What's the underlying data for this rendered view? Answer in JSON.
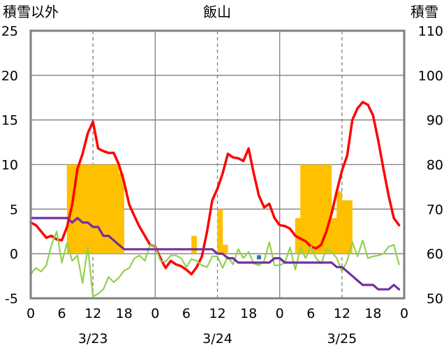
{
  "chart_data": {
    "type": "line",
    "title": "飯山",
    "ylabel_left": "積雪以外",
    "ylabel_right": "積雪",
    "ylim_left": [
      -5,
      25
    ],
    "ylim_right": [
      50,
      110
    ],
    "yticks_left": [
      "-5",
      "0",
      "5",
      "10",
      "15",
      "20",
      "25"
    ],
    "yticks_right": [
      "50",
      "60",
      "70",
      "80",
      "90",
      "100",
      "110"
    ],
    "x_range_hours": [
      0,
      72
    ],
    "xticks": [
      "0",
      "6",
      "12",
      "18",
      "0",
      "6",
      "12",
      "18",
      "0",
      "6",
      "12",
      "18",
      "0"
    ],
    "date_labels": [
      "3/23",
      "3/24",
      "3/25"
    ],
    "grid": {
      "horizontal": "solid",
      "day_separators": "solid",
      "noon_lines": "dashed"
    },
    "colors": {
      "temperature": "#ff0000",
      "snow_depth": "#7030a0",
      "precipitation": "#ffc000",
      "wind": "#92d050",
      "marker": "#2e75b6",
      "grid": "#7f7f7f"
    },
    "series": [
      {
        "key": "precipitation",
        "axis": "left",
        "type": "bar",
        "x": [
          7,
          8,
          9,
          10,
          11,
          12,
          13,
          14,
          15,
          16,
          17,
          31,
          36,
          37,
          51,
          52,
          53,
          54,
          55,
          56,
          57,
          58,
          59,
          60,
          61,
          62
        ],
        "values": [
          10,
          10,
          10,
          10,
          10,
          10,
          10,
          10,
          10,
          10,
          9,
          2,
          5,
          1,
          4,
          10,
          10,
          10,
          10,
          10,
          10,
          4,
          7,
          6,
          6,
          0
        ]
      },
      {
        "key": "temperature",
        "axis": "left",
        "type": "line",
        "x": [
          0,
          1,
          2,
          3,
          4,
          5,
          6,
          7,
          8,
          9,
          10,
          11,
          12,
          13,
          14,
          15,
          16,
          17,
          18,
          19,
          20,
          21,
          22,
          23,
          24,
          25,
          26,
          27,
          28,
          29,
          30,
          31,
          32,
          33,
          34,
          35,
          36,
          37,
          38,
          39,
          40,
          41,
          42,
          43,
          44,
          45,
          46,
          47,
          48,
          49,
          50,
          51,
          52,
          53,
          54,
          55,
          56,
          57,
          58,
          59,
          60,
          61,
          62,
          63,
          64,
          65,
          66,
          67,
          68,
          69,
          70,
          71
        ],
        "values": [
          3.5,
          3.2,
          2.5,
          1.8,
          2.0,
          1.6,
          1.5,
          3.0,
          5.5,
          9.5,
          11.2,
          13.5,
          14.8,
          11.8,
          11.5,
          11.3,
          11.3,
          10.0,
          8.0,
          5.5,
          4.2,
          3.0,
          2.0,
          1.0,
          0.8,
          -0.5,
          -1.6,
          -0.8,
          -1.2,
          -1.4,
          -1.8,
          -2.3,
          -1.5,
          -0.3,
          2.5,
          6.0,
          7.3,
          9.0,
          11.2,
          10.8,
          10.7,
          10.4,
          11.8,
          9.0,
          6.5,
          5.2,
          5.6,
          4.0,
          3.2,
          3.1,
          2.8,
          2.0,
          1.7,
          1.4,
          0.8,
          0.6,
          1.0,
          2.5,
          4.5,
          7.0,
          9.3,
          11.0,
          15.0,
          16.3,
          17.0,
          16.7,
          15.5,
          12.7,
          9.5,
          6.5,
          4.0,
          3.2
        ]
      },
      {
        "key": "wind",
        "axis": "left",
        "type": "line",
        "x": [
          0,
          1,
          2,
          3,
          4,
          5,
          6,
          7,
          8,
          9,
          10,
          11,
          12,
          13,
          14,
          15,
          16,
          17,
          18,
          19,
          20,
          21,
          22,
          23,
          24,
          25,
          26,
          27,
          28,
          29,
          30,
          31,
          32,
          33,
          34,
          35,
          36,
          37,
          38,
          39,
          40,
          41,
          42,
          43,
          44,
          45,
          46,
          47,
          48,
          49,
          50,
          51,
          52,
          53,
          54,
          55,
          56,
          57,
          58,
          59,
          60,
          61,
          62,
          63,
          64,
          65,
          66,
          67,
          68,
          69,
          70,
          71
        ],
        "values": [
          -2.3,
          -1.6,
          -2.0,
          -1.3,
          1.0,
          2.5,
          -1.0,
          1.2,
          -0.8,
          -0.2,
          -3.3,
          0.8,
          -4.8,
          -4.5,
          -4.0,
          -2.6,
          -3.2,
          -2.7,
          -1.9,
          -1.6,
          -0.5,
          -0.2,
          -0.8,
          1.0,
          0.8,
          -0.8,
          -0.9,
          -0.2,
          -0.2,
          -0.5,
          -1.5,
          -0.6,
          -0.8,
          -1.3,
          -1.5,
          -0.3,
          -0.3,
          -1.6,
          -0.3,
          -1.2,
          0.5,
          -0.5,
          0.2,
          -1.1,
          -1.3,
          -0.8,
          1.3,
          -1.3,
          -1.3,
          -1.0,
          0.7,
          -1.8,
          0.7,
          -0.5,
          0.8,
          -0.5,
          -1.1,
          0.5,
          0.2,
          -0.5,
          -2.0,
          -0.8,
          1.3,
          -0.3,
          1.5,
          -0.5,
          -0.3,
          -0.2,
          0.0,
          0.8,
          1.0,
          -1.2
        ]
      },
      {
        "key": "snow_depth",
        "axis": "right",
        "type": "line",
        "x": [
          0,
          1,
          2,
          3,
          4,
          5,
          6,
          7,
          8,
          9,
          10,
          11,
          12,
          13,
          14,
          15,
          16,
          17,
          18,
          19,
          20,
          21,
          22,
          23,
          24,
          25,
          26,
          27,
          28,
          29,
          30,
          31,
          32,
          33,
          34,
          35,
          36,
          37,
          38,
          39,
          40,
          41,
          42,
          43,
          44,
          45,
          46,
          47,
          48,
          49,
          50,
          51,
          52,
          53,
          54,
          55,
          56,
          57,
          58,
          59,
          60,
          61,
          62,
          63,
          64,
          65,
          66,
          67,
          68,
          69,
          70,
          71
        ],
        "values": [
          68,
          68,
          68,
          68,
          68,
          68,
          68,
          68,
          67,
          68,
          67,
          67,
          66,
          66,
          64,
          64,
          63,
          62,
          61,
          61,
          61,
          61,
          61,
          61,
          61,
          61,
          61,
          61,
          61,
          61,
          61,
          61,
          61,
          61,
          61,
          61,
          60,
          60,
          59,
          59,
          58,
          58,
          58,
          58,
          58,
          58,
          58,
          59,
          59,
          58,
          58,
          58,
          58,
          58,
          58,
          58,
          58,
          58,
          58,
          57,
          57,
          56,
          55,
          54,
          53,
          53,
          53,
          52,
          52,
          52,
          53,
          52
        ]
      },
      {
        "key": "marker",
        "axis": "left",
        "type": "scatter",
        "x": [
          44
        ],
        "values": [
          -0.4
        ]
      }
    ]
  }
}
